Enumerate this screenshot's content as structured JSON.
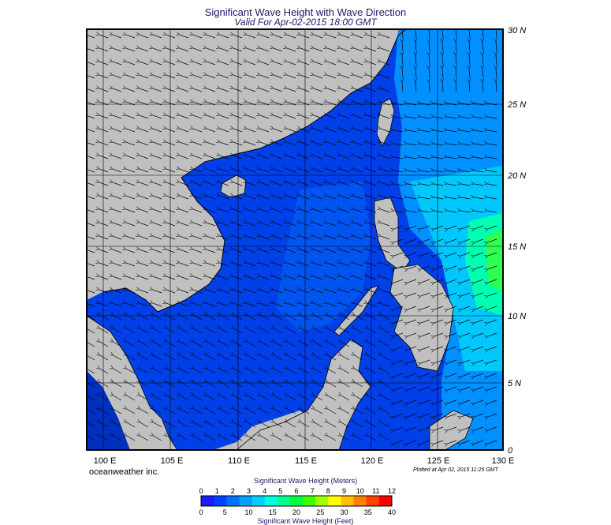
{
  "header": {
    "title": "Significant Wave Height with Wave Direction",
    "subtitle": "Valid For Apr-02-2015 18:00 GMT"
  },
  "map": {
    "lon_range": [
      98,
      130
    ],
    "lat_range": [
      0,
      30
    ],
    "latitude_labels": [
      "30 N",
      "25 N",
      "20 N",
      "15 N",
      "10 N",
      "5 N",
      "0"
    ],
    "longitude_labels": [
      "100 E",
      "105 E",
      "110 E",
      "115 E",
      "120 E",
      "125 E",
      "130 E"
    ],
    "grid": true,
    "colors": {
      "land": "#c0c0c0",
      "wave_low": "#0033e6",
      "wave_mid": "#0080ff",
      "wave_high": "#00e0ff",
      "wave_peak": "#00ff80"
    }
  },
  "footer": {
    "credit": "oceanweather inc.",
    "plotted": "Plotted at Apr 02, 2015 11:25 GMT"
  },
  "colorbar": {
    "title_top": "Significant Wave Height (Meters)",
    "title_bottom": "Significant Wave Height (Feet)",
    "meters_ticks": [
      "0",
      "1",
      "2",
      "3",
      "4",
      "5",
      "6",
      "7",
      "8",
      "9",
      "10",
      "11",
      "12"
    ],
    "feet_ticks": [
      "0",
      "5",
      "10",
      "15",
      "20",
      "25",
      "30",
      "35",
      "40"
    ],
    "colors": [
      "#1a1aff",
      "#0040ff",
      "#0070ff",
      "#00a0ff",
      "#00d0ff",
      "#00ffe0",
      "#00ff90",
      "#00ff40",
      "#40ff00",
      "#a0ff00",
      "#ffff00",
      "#ffc000",
      "#ff8000",
      "#ff4000",
      "#ff0000"
    ]
  }
}
